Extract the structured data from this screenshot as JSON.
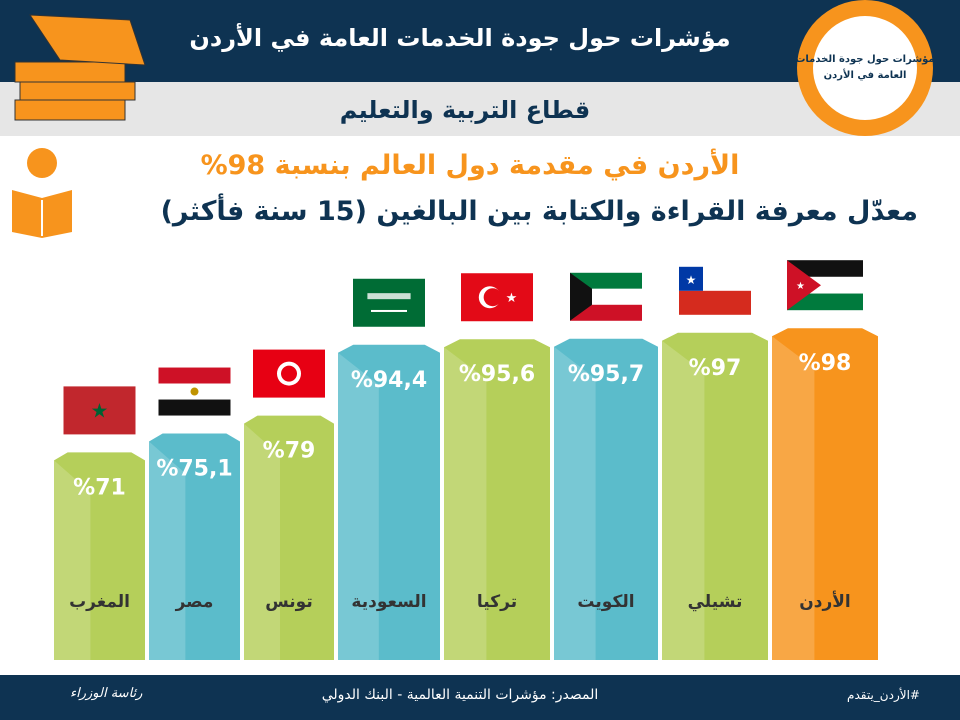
{
  "header": {
    "title": "مؤشرات حول جودة الخدمات العامة في الأردن",
    "subtitle": "قطاع التربية والتعليم",
    "logo_text": "مؤشرات حول جودة الخدمات العامة في الأردن"
  },
  "headline": "الأردن في مقدمة دول العالم بنسبة 98%",
  "footer": {
    "source": "المصدر: مؤشرات التنمية العالمية - البنك الدولي",
    "hashtag": "#الأردن_يتقدم",
    "pm_logo": "رئاسة الوزراء"
  },
  "colors": {
    "navy": "#0e3352",
    "orange": "#f7941d",
    "green": "#b5cf5a",
    "blue": "#5bbccb"
  },
  "chart_data": {
    "type": "bar",
    "title": "معدّل معرفة القراءة والكتابة بين البالغين (15 سنة فأكثر)",
    "categories": [
      "المغرب",
      "مصر",
      "تونس",
      "السعودية",
      "تركيا",
      "الكويت",
      "تشيلي",
      "الأردن"
    ],
    "values": [
      71,
      75.1,
      79,
      94.4,
      95.6,
      95.7,
      97,
      98
    ],
    "labels": [
      "%71",
      "%75,1",
      "%79",
      "%94,4",
      "%95,6",
      "%95,7",
      "%97",
      "%98"
    ],
    "flags": [
      "morocco",
      "egypt",
      "tunisia",
      "saudi",
      "turkey",
      "kuwait",
      "chile",
      "jordan"
    ],
    "bar_colors": [
      "#b5cf5a",
      "#5bbccb",
      "#b5cf5a",
      "#5bbccb",
      "#b5cf5a",
      "#5bbccb",
      "#b5cf5a",
      "#f7941d"
    ],
    "ylabel": "",
    "xlabel": "",
    "ylim": [
      0,
      100
    ]
  }
}
